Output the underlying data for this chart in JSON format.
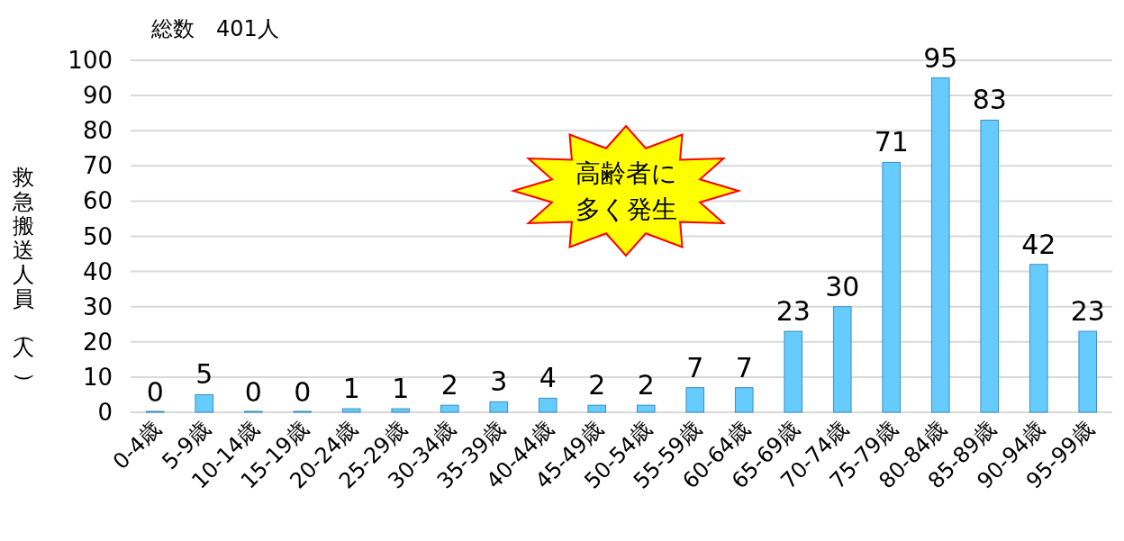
{
  "chart_data": {
    "type": "bar",
    "title": "総数　401人",
    "ylabel": "救急搬送人員（人）",
    "categories": [
      "0-4歳",
      "5-9歳",
      "10-14歳",
      "15-19歳",
      "20-24歳",
      "25-29歳",
      "30-34歳",
      "35-39歳",
      "40-44歳",
      "45-49歳",
      "50-54歳",
      "55-59歳",
      "60-64歳",
      "65-69歳",
      "70-74歳",
      "75-79歳",
      "80-84歳",
      "85-89歳",
      "90-94歳",
      "95-99歳"
    ],
    "values": [
      0,
      5,
      0,
      0,
      1,
      1,
      2,
      3,
      4,
      2,
      2,
      7,
      7,
      23,
      30,
      71,
      95,
      83,
      42,
      23
    ],
    "color": "#66ccff",
    "ylim": [
      0,
      100
    ],
    "yticks": [
      0,
      10,
      20,
      30,
      40,
      50,
      60,
      70,
      80,
      90,
      100
    ],
    "grid": "y",
    "data_labels": true,
    "annotations": [
      "高齢者に多く発生"
    ]
  }
}
